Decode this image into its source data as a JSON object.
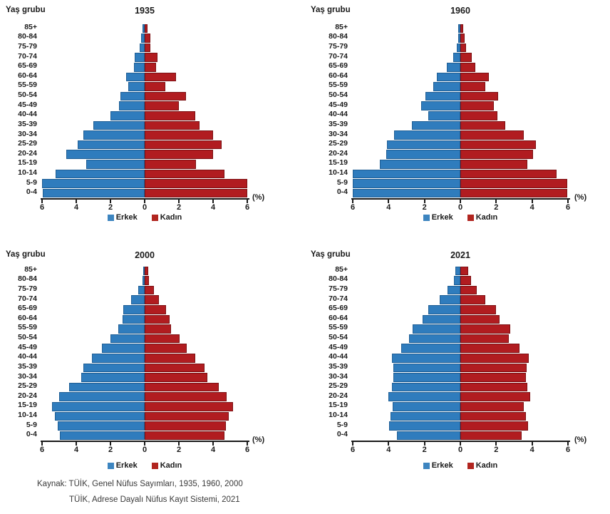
{
  "colors": {
    "male": "#2f7cbd",
    "male_border": "#1f5e94",
    "female": "#b11c20",
    "female_border": "#7c1114"
  },
  "source": {
    "line1": "Kaynak: TÜİK, Genel Nüfus Sayımları, 1935, 1960, 2000",
    "line2": "TÜİK, Adrese Dayalı Nüfus Kayıt Sistemi, 2021"
  },
  "chart_data": [
    {
      "type": "bar",
      "orientation": "horizontal-diverging-pyramid",
      "title": "1935",
      "y_axis_title": "Yaş grubu",
      "percent_label": "(%)",
      "xlim": [
        -6,
        6
      ],
      "x_tick_labels": [
        "6",
        "4",
        "2",
        "0",
        "2",
        "4",
        "6"
      ],
      "legend_position": "bottom",
      "grid": false,
      "categories": [
        "85+",
        "80-84",
        "75-79",
        "70-74",
        "65-69",
        "60-64",
        "55-59",
        "50-54",
        "45-49",
        "40-44",
        "35-39",
        "30-34",
        "25-29",
        "20-24",
        "15-19",
        "10-14",
        "5-9",
        "0-4"
      ],
      "series": [
        {
          "name": "Erkek",
          "side": "left",
          "values": [
            0.12,
            0.2,
            0.28,
            0.6,
            0.64,
            1.1,
            0.95,
            1.4,
            1.5,
            2.0,
            3.0,
            3.6,
            3.9,
            4.6,
            3.4,
            5.2,
            6.0,
            5.95
          ]
        },
        {
          "name": "Kadın",
          "side": "right",
          "values": [
            0.18,
            0.33,
            0.33,
            0.75,
            0.65,
            1.85,
            1.2,
            2.4,
            2.0,
            2.95,
            3.2,
            4.0,
            4.5,
            4.0,
            3.0,
            4.65,
            6.0,
            6.0
          ]
        }
      ]
    },
    {
      "type": "bar",
      "orientation": "horizontal-diverging-pyramid",
      "title": "1960",
      "y_axis_title": "Yaş grubu",
      "percent_label": "(%)",
      "xlim": [
        -6,
        6
      ],
      "x_tick_labels": [
        "6",
        "4",
        "2",
        "0",
        "2",
        "4",
        "6"
      ],
      "legend_position": "bottom",
      "grid": false,
      "categories": [
        "85+",
        "80-84",
        "75-79",
        "70-74",
        "65-69",
        "60-64",
        "55-59",
        "50-54",
        "45-49",
        "40-44",
        "35-39",
        "30-34",
        "25-29",
        "20-24",
        "15-19",
        "10-14",
        "5-9",
        "0-4"
      ],
      "series": [
        {
          "name": "Erkek",
          "side": "left",
          "values": [
            0.1,
            0.12,
            0.2,
            0.4,
            0.75,
            1.3,
            1.5,
            1.95,
            2.2,
            1.8,
            2.7,
            3.7,
            4.1,
            4.15,
            4.5,
            6.0,
            6.0,
            6.0
          ]
        },
        {
          "name": "Kadın",
          "side": "right",
          "values": [
            0.17,
            0.22,
            0.33,
            0.65,
            0.85,
            1.6,
            1.4,
            2.1,
            1.85,
            2.05,
            2.5,
            3.55,
            4.2,
            4.05,
            3.75,
            5.35,
            5.95,
            5.95
          ]
        }
      ]
    },
    {
      "type": "bar",
      "orientation": "horizontal-diverging-pyramid",
      "title": "2000",
      "y_axis_title": "Yaş grubu",
      "percent_label": "(%)",
      "xlim": [
        -6,
        6
      ],
      "x_tick_labels": [
        "6",
        "4",
        "2",
        "0",
        "2",
        "4",
        "6"
      ],
      "legend_position": "bottom",
      "grid": false,
      "categories": [
        "85+",
        "80-84",
        "75-79",
        "70-74",
        "65-69",
        "60-64",
        "55-59",
        "50-54",
        "45-49",
        "40-44",
        "35-39",
        "30-34",
        "25-29",
        "20-24",
        "15-19",
        "10-14",
        "5-9",
        "0-4"
      ],
      "series": [
        {
          "name": "Erkek",
          "side": "left",
          "values": [
            0.1,
            0.12,
            0.38,
            0.79,
            1.24,
            1.28,
            1.55,
            2.02,
            2.5,
            3.1,
            3.6,
            3.7,
            4.4,
            5.0,
            5.4,
            5.25,
            5.1,
            4.95
          ]
        },
        {
          "name": "Kadın",
          "side": "right",
          "values": [
            0.2,
            0.25,
            0.55,
            0.82,
            1.25,
            1.45,
            1.55,
            2.05,
            2.45,
            2.95,
            3.5,
            3.65,
            4.35,
            4.8,
            5.15,
            4.9,
            4.75,
            4.65
          ]
        }
      ]
    },
    {
      "type": "bar",
      "orientation": "horizontal-diverging-pyramid",
      "title": "2021",
      "y_axis_title": "Yaş grubu",
      "percent_label": "(%)",
      "xlim": [
        -6,
        6
      ],
      "x_tick_labels": [
        "6",
        "4",
        "2",
        "0",
        "2",
        "4",
        "6"
      ],
      "legend_position": "bottom",
      "grid": false,
      "categories": [
        "85+",
        "80-84",
        "75-79",
        "70-74",
        "65-69",
        "60-64",
        "55-59",
        "50-54",
        "45-49",
        "40-44",
        "35-39",
        "30-34",
        "25-29",
        "20-24",
        "15-19",
        "10-14",
        "5-9",
        "0-4"
      ],
      "series": [
        {
          "name": "Erkek",
          "side": "left",
          "values": [
            0.28,
            0.37,
            0.72,
            1.15,
            1.8,
            2.1,
            2.65,
            2.85,
            3.3,
            3.8,
            3.75,
            3.75,
            3.8,
            4.0,
            3.78,
            3.88,
            3.98,
            3.55
          ]
        },
        {
          "name": "Kadın",
          "side": "right",
          "values": [
            0.45,
            0.6,
            0.9,
            1.4,
            2.0,
            2.2,
            2.8,
            2.7,
            3.3,
            3.8,
            3.7,
            3.65,
            3.72,
            3.88,
            3.55,
            3.66,
            3.78,
            3.4
          ]
        }
      ]
    }
  ]
}
